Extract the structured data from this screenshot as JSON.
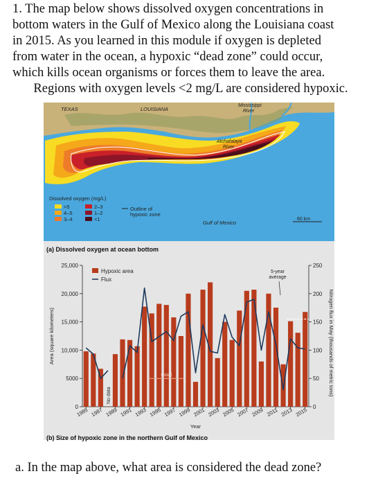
{
  "question": {
    "line1": "1.  The map below shows dissolved oxygen concentrations in",
    "line2": "bottom waters in the Gulf of Mexico along the Louisiana coast",
    "line3": "in 2015.  As you learned in this module if oxygen is depleted",
    "line4": "from water in the ocean, a hypoxic “dead zone” could occur,",
    "line5": "which kills ocean organisms or forces them to leave the area.",
    "line6": "Regions with oxygen levels <2 mg/L are considered hypoxic."
  },
  "map": {
    "label_texas": "TEXAS",
    "label_louisiana": "LOUISIANA",
    "label_mississippi_1": "Mississippi",
    "label_mississippi_2": "River",
    "label_atchafalaya_1": "Atchafalaya",
    "label_atchafalaya_2": "River",
    "label_gulf": "Gulf of Mexico",
    "scale": "60 km",
    "legend_title": "Dissolved oxygen (mg/L)",
    "legend": [
      ">5",
      "4–5",
      "3–4",
      "2–3",
      "1–2",
      "<1"
    ],
    "legend_colors": [
      "#f7dc23",
      "#f5a819",
      "#ee7b2a",
      "#c9202a",
      "#8e1528",
      "#4a0d1c"
    ],
    "legend_outline_1": "Outline of",
    "legend_outline_2": "hypoxic zone",
    "caption": "(a) Dissolved oxygen at ocean bottom"
  },
  "chart_data": {
    "type": "bar",
    "categories": [
      "1985",
      "1986",
      "1987",
      "1988",
      "1989",
      "1990",
      "1991",
      "1992",
      "1993",
      "1994",
      "1995",
      "1996",
      "1997",
      "1998",
      "1999",
      "2000",
      "2001",
      "2002",
      "2003",
      "2004",
      "2005",
      "2006",
      "2007",
      "2008",
      "2009",
      "2010",
      "2011",
      "2012",
      "2013",
      "2014",
      "2015"
    ],
    "x_tick_labels": [
      "1985",
      "1987",
      "1989",
      "1991",
      "1993",
      "1995",
      "1997",
      "1999",
      "2001",
      "2003",
      "2005",
      "2007",
      "2009",
      "2011",
      "2013",
      "2015"
    ],
    "series": [
      {
        "name": "Hypoxic area",
        "values": [
          9800,
          9400,
          6700,
          40,
          9300,
          11900,
          11800,
          10700,
          17700,
          16500,
          18200,
          18000,
          15800,
          12500,
          20000,
          4400,
          20700,
          22000,
          8600,
          15000,
          11800,
          17000,
          20500,
          20700,
          8000,
          20000,
          17520,
          7500,
          15120,
          13080,
          16760
        ]
      },
      {
        "name": "Flux",
        "values": [
          104,
          93,
          50,
          64,
          null,
          50,
          108,
          96,
          210,
          115,
          124,
          133,
          117,
          160,
          168,
          60,
          145,
          98,
          95,
          163,
          123,
          108,
          185,
          190,
          100,
          168,
          110,
          30,
          120,
          104,
          102
        ]
      }
    ],
    "no_data_label": "No data",
    "goal_label": "Goal",
    "goal_value": 5000,
    "annotation_1": "5-year",
    "annotation_2": "average",
    "five_year_average": [
      null,
      null,
      null,
      null,
      null,
      null,
      null,
      null,
      null,
      null,
      null,
      null,
      null,
      null,
      null,
      null,
      null,
      null,
      null,
      null,
      null,
      null,
      null,
      null,
      null,
      null,
      null,
      null,
      15500,
      15500,
      15500
    ],
    "ylabel": "Area (square kilometers)",
    "y2label": "Nitrogen flux in May (thousands of metric tons)",
    "xlabel": "Year",
    "ylim": [
      0,
      25000
    ],
    "y2lim": [
      0,
      250
    ],
    "yticks": [
      "0",
      "5000",
      "10,000",
      "15,000",
      "20,000",
      "25,000"
    ],
    "y2ticks": [
      "0",
      "50",
      "100",
      "150",
      "200",
      "250"
    ],
    "legend_position": "top-left",
    "bar_color": "#b83c1d",
    "line_color": "#1f3a5c"
  },
  "caption_b": "(b) Size of hypoxic zone in the northern Gulf of Mexico",
  "question_a": "a.  In the map above, what area is considered the dead zone?"
}
